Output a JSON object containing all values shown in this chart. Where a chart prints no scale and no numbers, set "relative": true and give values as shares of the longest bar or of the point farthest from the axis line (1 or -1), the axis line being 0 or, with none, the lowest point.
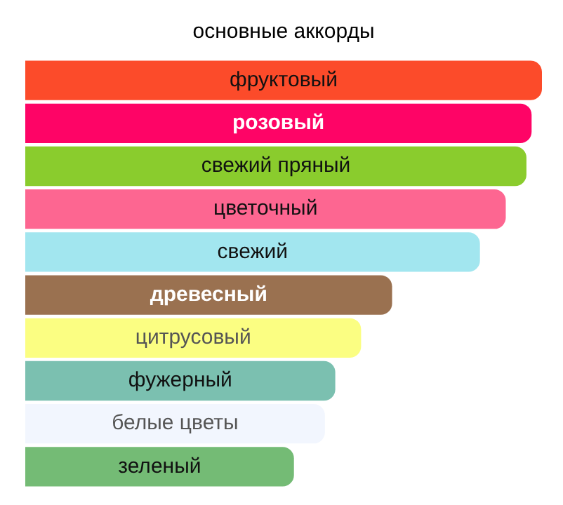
{
  "chart_data": {
    "type": "bar",
    "orientation": "horizontal",
    "relative": true,
    "title": "основные аккорды",
    "legend": false,
    "categories": [
      "фруктовый",
      "розовый",
      "свежий пряный",
      "цветочный",
      "свежий",
      "древесный",
      "цитрусовый",
      "фужерный",
      "белые цветы",
      "зеленый"
    ],
    "values": [
      1,
      0.98,
      0.97,
      0.93,
      0.88,
      0.71,
      0.65,
      0.6,
      0.58,
      0.52
    ],
    "colors": [
      "#fc4b2a",
      "#fe0466",
      "#8acc2d",
      "#fd6691",
      "#a2e6ef",
      "#9a7150",
      "#fbfe82",
      "#7bc0b0",
      "#f2f6fe",
      "#74bb75"
    ]
  }
}
